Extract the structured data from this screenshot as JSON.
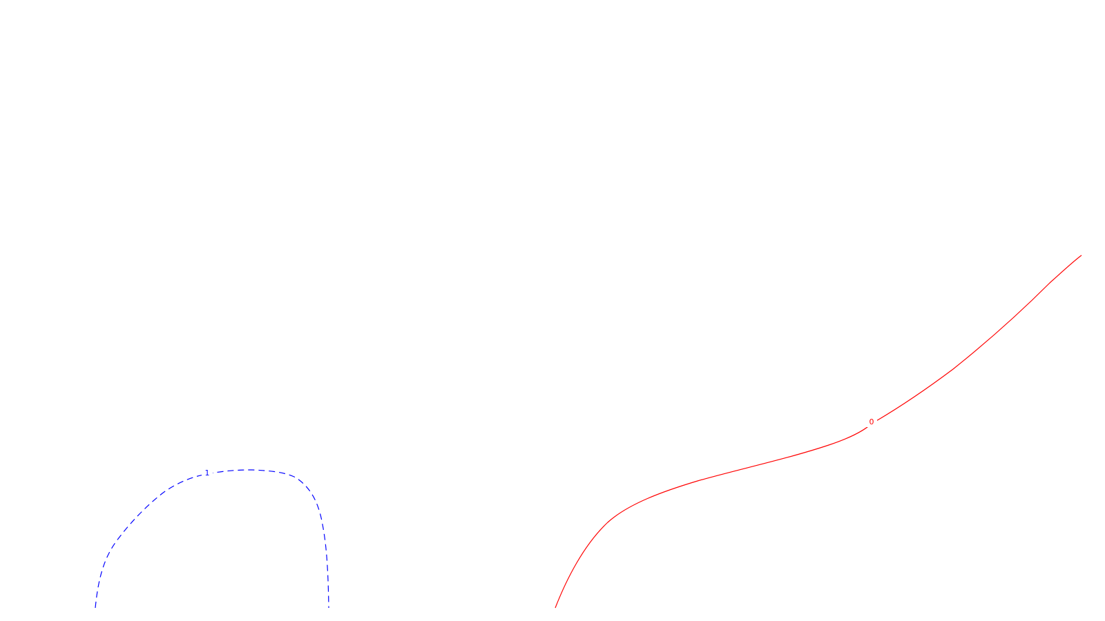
{
  "contours": [
    {
      "label": "1",
      "color": "#0000ff",
      "style": "dashed"
    },
    {
      "label": "0",
      "color": "#ff0000",
      "style": "solid"
    }
  ]
}
